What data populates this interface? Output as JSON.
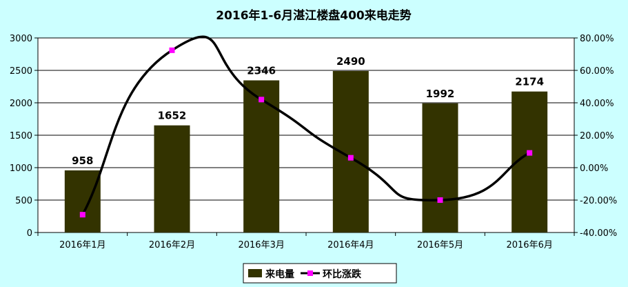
{
  "chart_data": {
    "type": "bar",
    "title": "2016年1-6月湛江楼盘400来电走势",
    "categories": [
      "2016年1月",
      "2016年2月",
      "2016年3月",
      "2016年4月",
      "2016年5月",
      "2016年6月"
    ],
    "series": [
      {
        "name": "来电量",
        "type": "bar",
        "axis": "left",
        "color": "#333300",
        "values": [
          958,
          1652,
          2346,
          2490,
          1992,
          2174
        ],
        "data_labels": [
          "958",
          "1652",
          "2346",
          "2490",
          "1992",
          "2174"
        ]
      },
      {
        "name": "环比涨跌",
        "type": "line",
        "axis": "right",
        "color": "#000000",
        "marker_color": "#ff00ff",
        "smooth": true,
        "values": [
          -29.0,
          72.4,
          42.0,
          6.1,
          -20.0,
          9.1
        ]
      }
    ],
    "y_left": {
      "min": 0,
      "max": 3000,
      "ticks": [
        "0",
        "500",
        "1000",
        "1500",
        "2000",
        "2500",
        "3000"
      ]
    },
    "y_right": {
      "min": -40,
      "max": 80,
      "ticks": [
        "-40.00%",
        "-20.00%",
        "0.00%",
        "20.00%",
        "40.00%",
        "60.00%",
        "80.00%"
      ]
    },
    "grid": true,
    "legend_position": "bottom",
    "background_color": "#ccffff",
    "plot_background_color": "#ffffff"
  }
}
